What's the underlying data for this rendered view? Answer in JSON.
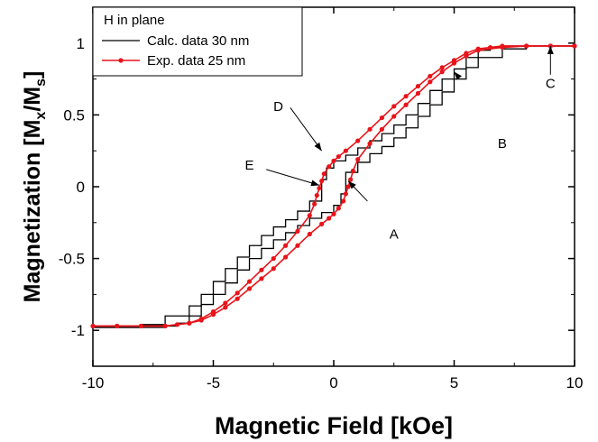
{
  "chart_data": {
    "type": "line",
    "xlabel": "Magnetic Field [kOe]",
    "ylabel_main": "Magnetization [M",
    "ylabel_sub1": "x",
    "ylabel_mid": "/M",
    "ylabel_sub2": "s",
    "ylabel_end": "]",
    "xlim": [
      -10,
      10
    ],
    "ylim": [
      -1.25,
      1.25
    ],
    "xticks": [
      -10,
      -5,
      0,
      5,
      10
    ],
    "yticks": [
      -1,
      -0.5,
      0,
      0.5,
      1
    ],
    "xtick_labels": [
      "-10",
      "-5",
      "0",
      "5",
      "10"
    ],
    "ytick_labels": [
      "-1",
      "-0.5",
      "0",
      "0.5",
      "1"
    ],
    "grid": false,
    "legend": {
      "placement": "top-left",
      "title": "H in plane",
      "entries": [
        "Calc. data 30 nm",
        "Exp. data 25 nm"
      ]
    },
    "series": [
      {
        "name": "Calc. data 30 nm",
        "color": "#000000",
        "style": "step",
        "descending": {
          "x": [
            10,
            9,
            8,
            7,
            6.5,
            6,
            5.5,
            5,
            4.5,
            4,
            3.5,
            3,
            2.5,
            2,
            1.5,
            1,
            0.5,
            0,
            -0.3,
            -0.5,
            -1,
            -1.5,
            -2,
            -2.5,
            -3,
            -3.5,
            -4,
            -4.5,
            -5,
            -5.5,
            -6,
            -7,
            -8,
            -9,
            -10
          ],
          "y": [
            0.98,
            0.98,
            0.98,
            0.97,
            0.95,
            0.9,
            0.82,
            0.75,
            0.67,
            0.58,
            0.5,
            0.43,
            0.37,
            0.32,
            0.27,
            0.22,
            0.18,
            0.13,
            0.05,
            -0.1,
            -0.17,
            -0.23,
            -0.28,
            -0.34,
            -0.41,
            -0.49,
            -0.57,
            -0.66,
            -0.75,
            -0.83,
            -0.9,
            -0.96,
            -0.98,
            -0.98,
            -0.98
          ]
        },
        "ascending": {
          "x": [
            -10,
            -9,
            -8,
            -7,
            -6.5,
            -6,
            -5.5,
            -5,
            -4.5,
            -4,
            -3.5,
            -3,
            -2.5,
            -2,
            -1.5,
            -1,
            -0.5,
            0,
            0.3,
            0.5,
            1,
            1.5,
            2,
            2.5,
            3,
            3.5,
            4,
            4.5,
            5,
            5.5,
            6,
            7,
            8,
            9,
            10
          ],
          "y": [
            -0.98,
            -0.98,
            -0.98,
            -0.97,
            -0.95,
            -0.9,
            -0.82,
            -0.75,
            -0.67,
            -0.58,
            -0.5,
            -0.43,
            -0.37,
            -0.32,
            -0.27,
            -0.22,
            -0.18,
            -0.13,
            -0.05,
            0.1,
            0.17,
            0.23,
            0.28,
            0.34,
            0.41,
            0.49,
            0.57,
            0.66,
            0.75,
            0.83,
            0.9,
            0.96,
            0.98,
            0.98,
            0.98
          ]
        }
      },
      {
        "name": "Exp. data 25 nm",
        "color": "#e8141a",
        "style": "line-marker",
        "descending": {
          "x": [
            10,
            9,
            8,
            7,
            6.5,
            6,
            5.5,
            5,
            4.5,
            4,
            3.5,
            3,
            2.5,
            2,
            1.5,
            1,
            0.5,
            0.2,
            0,
            -0.2,
            -0.4,
            -0.5,
            -0.6,
            -0.7,
            -0.8,
            -1,
            -1.5,
            -2,
            -2.5,
            -3,
            -3.5,
            -4,
            -4.5,
            -5,
            -5.5,
            -6,
            -7,
            -8,
            -9,
            -10
          ],
          "y": [
            0.98,
            0.98,
            0.98,
            0.98,
            0.97,
            0.96,
            0.93,
            0.88,
            0.83,
            0.77,
            0.7,
            0.63,
            0.56,
            0.48,
            0.4,
            0.32,
            0.25,
            0.21,
            0.18,
            0.14,
            0.09,
            0.04,
            -0.01,
            -0.06,
            -0.12,
            -0.2,
            -0.31,
            -0.41,
            -0.5,
            -0.58,
            -0.66,
            -0.74,
            -0.81,
            -0.87,
            -0.92,
            -0.95,
            -0.97,
            -0.97,
            -0.97,
            -0.97
          ]
        },
        "ascending": {
          "x": [
            -10,
            -9,
            -8,
            -7,
            -6.5,
            -6,
            -5.5,
            -5,
            -4.5,
            -4,
            -3.5,
            -3,
            -2.5,
            -2,
            -1.5,
            -1,
            -0.5,
            -0.2,
            0,
            0.2,
            0.4,
            0.5,
            0.6,
            0.7,
            0.8,
            1,
            1.5,
            2,
            2.5,
            3,
            3.5,
            4,
            4.5,
            5,
            5.5,
            6,
            7,
            8,
            9,
            10
          ],
          "y": [
            -0.97,
            -0.97,
            -0.97,
            -0.97,
            -0.96,
            -0.95,
            -0.93,
            -0.89,
            -0.84,
            -0.78,
            -0.71,
            -0.64,
            -0.57,
            -0.49,
            -0.41,
            -0.33,
            -0.26,
            -0.22,
            -0.19,
            -0.15,
            -0.1,
            -0.05,
            0.0,
            0.05,
            0.11,
            0.19,
            0.3,
            0.4,
            0.49,
            0.57,
            0.65,
            0.73,
            0.8,
            0.86,
            0.91,
            0.95,
            0.97,
            0.98,
            0.98,
            0.98
          ]
        }
      }
    ],
    "annotations": [
      {
        "label": "A",
        "text_at": [
          1.4,
          -0.1
        ],
        "arrow_to": [
          0.6,
          0.04
        ],
        "text_pos": [
          2.5,
          -0.33
        ]
      },
      {
        "label": "B",
        "text_at": [
          5.1,
          0.78
        ],
        "arrow_to": [
          5.0,
          0.8
        ],
        "text_pos": [
          7.0,
          0.3
        ]
      },
      {
        "label": "C",
        "text_at": [
          9.0,
          0.78
        ],
        "arrow_to": [
          9.0,
          0.98
        ],
        "text_pos": [
          9.0,
          0.72
        ]
      },
      {
        "label": "D",
        "text_at": [
          -1.8,
          0.55
        ],
        "arrow_to": [
          -0.5,
          0.25
        ],
        "text_pos": [
          -2.3,
          0.56
        ]
      },
      {
        "label": "E",
        "text_at": [
          -2.8,
          0.12
        ],
        "arrow_to": [
          -0.6,
          0.01
        ],
        "text_pos": [
          -3.5,
          0.15
        ]
      }
    ]
  }
}
